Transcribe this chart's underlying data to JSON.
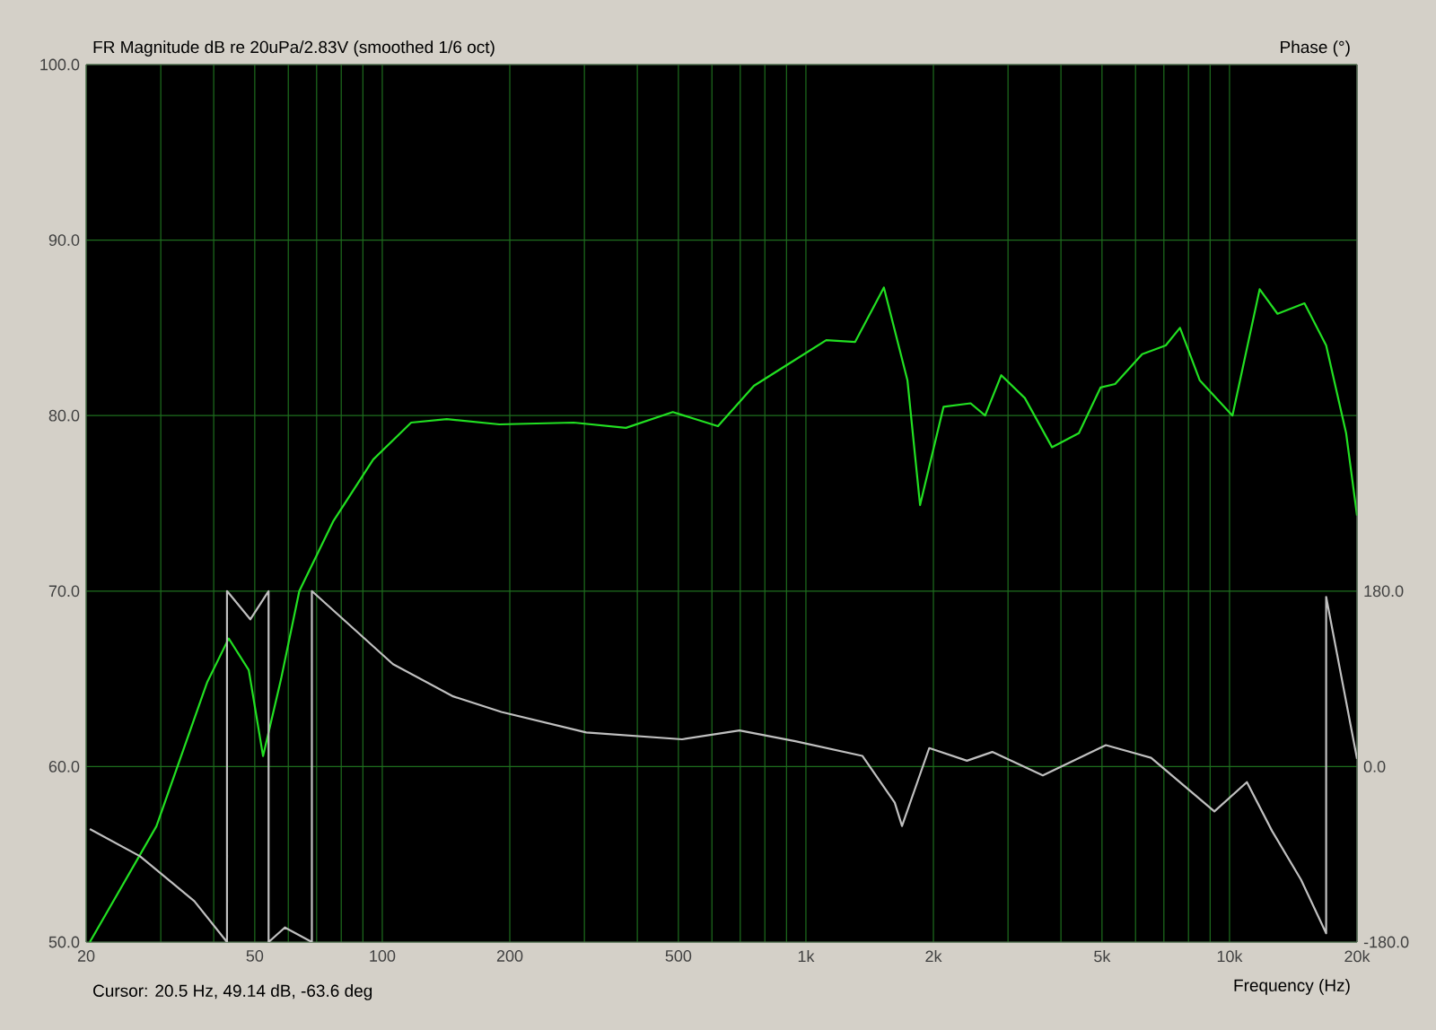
{
  "chart_data": {
    "type": "line",
    "log": "x",
    "grid": true,
    "ylabel": "FR Magnitude dB re 20uPa/2.83V (smoothed 1/6 oct)",
    "y2label": "Phase (°)",
    "xlabel": "Frequency (Hz)",
    "annotations": [
      "Cursor: 20.5 Hz, 49.14 dB, -63.6 deg"
    ],
    "xlim": [
      20,
      20000
    ],
    "xticks": [
      20,
      {
        "value": 30,
        "label": null
      },
      {
        "value": 40,
        "label": null
      },
      50,
      {
        "value": 60,
        "label": null
      },
      {
        "value": 70,
        "label": null
      },
      {
        "value": 80,
        "label": null
      },
      {
        "value": 90,
        "label": null
      },
      100,
      200,
      {
        "value": 300,
        "label": null
      },
      {
        "value": 400,
        "label": null
      },
      500,
      {
        "value": 600,
        "label": null
      },
      {
        "value": 700,
        "label": null
      },
      {
        "value": 800,
        "label": null
      },
      {
        "value": 900,
        "label": null
      },
      {
        "value": 1000,
        "label": "1k"
      },
      {
        "value": 2000,
        "label": "2k"
      },
      {
        "value": 3000,
        "label": null
      },
      {
        "value": 4000,
        "label": null
      },
      {
        "value": 5000,
        "label": "5k"
      },
      {
        "value": 6000,
        "label": null
      },
      {
        "value": 7000,
        "label": null
      },
      {
        "value": 8000,
        "label": null
      },
      {
        "value": 9000,
        "label": null
      },
      {
        "value": 10000,
        "label": "10k"
      },
      {
        "value": 20000,
        "label": "20k"
      }
    ],
    "ylim": [
      50,
      100
    ],
    "yticks": [
      {
        "value": 50,
        "label": "50.0"
      },
      {
        "value": 60,
        "label": "60.0"
      },
      {
        "value": 70,
        "label": "70.0"
      },
      {
        "value": 80,
        "label": "80.0"
      },
      {
        "value": 90,
        "label": "90.0"
      },
      {
        "value": 100,
        "label": "100.0"
      }
    ],
    "y2lim": [
      -180,
      720
    ],
    "y2ticks": [
      {
        "value": -180,
        "label": "-180.0"
      },
      {
        "value": 0,
        "label": "0.0"
      },
      {
        "value": 180,
        "label": "180.0"
      }
    ],
    "series": [
      {
        "color": "#22e022",
        "x": [
          20.4,
          29.3,
          38.6,
          43.4,
          48.4,
          52.3,
          57.7,
          63.7,
          76.7,
          95.2,
          117,
          142,
          189,
          283,
          376,
          485,
          620,
          754,
          918,
          1117,
          1307,
          1528,
          1737,
          1860,
          2113,
          2448,
          2649,
          2892,
          3287,
          3810,
          4410,
          4960,
          5370,
          6220,
          7070,
          7640,
          8510,
          10160,
          11780,
          12980,
          15030,
          16910,
          18850,
          20000
        ],
        "values": [
          50.0,
          56.6,
          64.8,
          67.3,
          65.5,
          60.6,
          65.0,
          70.0,
          74.0,
          77.5,
          79.6,
          79.8,
          79.5,
          79.6,
          79.3,
          80.2,
          79.4,
          81.7,
          83.0,
          84.3,
          84.2,
          87.3,
          82.0,
          74.9,
          80.5,
          80.7,
          80.0,
          82.3,
          81.0,
          78.2,
          79.0,
          81.6,
          81.8,
          83.5,
          84.0,
          85.0,
          82.0,
          80.0,
          87.2,
          85.8,
          86.4,
          84.0,
          79.0,
          74.3
        ]
      },
      {
        "color": "#c0c0c0",
        "axis": "y2",
        "x": [
          20.4,
          26.8,
          36.0,
          43.0,
          43.0,
          48.8,
          53.9,
          53.9,
          58.9,
          68.2,
          68.2,
          106,
          147,
          191,
          303,
          510,
          697,
          944,
          1359,
          1621,
          1686,
          1955,
          2400,
          2754,
          3625,
          5106,
          6530,
          9210,
          10990,
          12600,
          14750,
          16910,
          16910,
          20000
        ],
        "values": [
          -64,
          -92,
          -138,
          -180,
          180,
          151,
          180,
          -180,
          -165,
          -180,
          180,
          105,
          72,
          56,
          35,
          28,
          37,
          26,
          11,
          -37,
          -61,
          19,
          6,
          15,
          -9,
          22,
          9,
          -46,
          -16,
          -66,
          -116,
          -171,
          174,
          8
        ]
      }
    ]
  }
}
